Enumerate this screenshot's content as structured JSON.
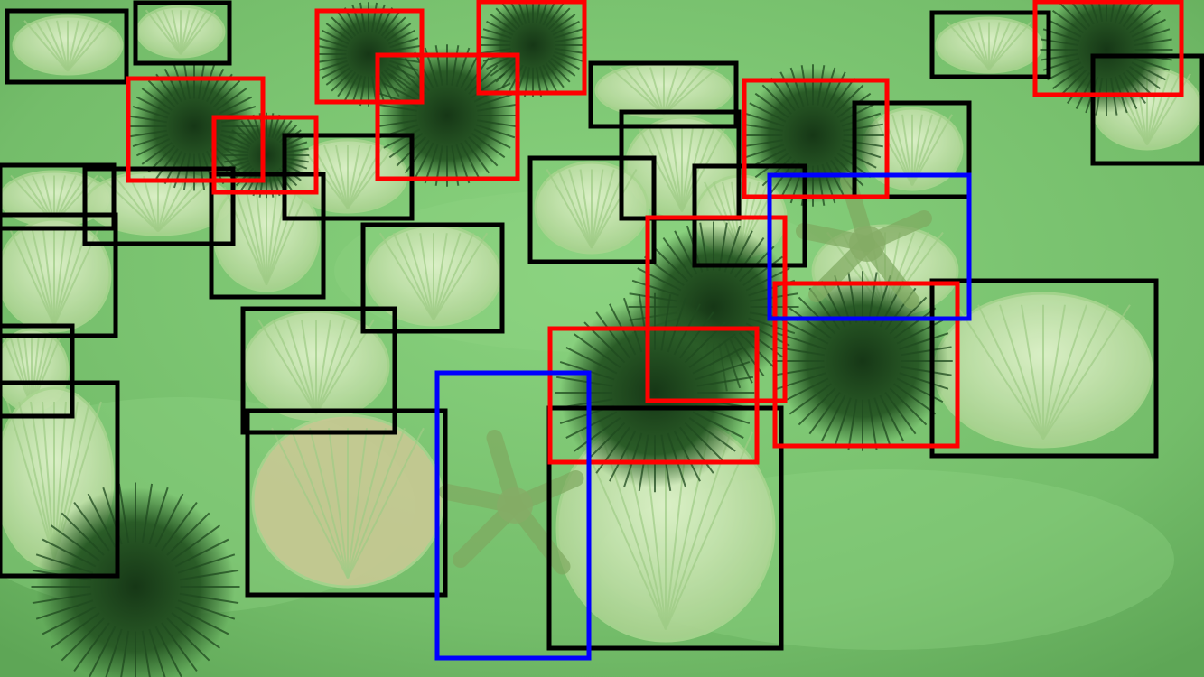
{
  "colors": {
    "water_light": "#86cf7c",
    "water_mid": "#6fb866",
    "water_dark": "#4f9a4a",
    "shell": "#cfe9b7",
    "shell_rim": "#a8d58f",
    "shell_tan": "#c9c48a",
    "urchin": "#1f4a1f",
    "box_scallop": "#000000",
    "box_urchin": "#ff0000",
    "box_starfish": "#0000ff"
  },
  "legend": {
    "box_scallop": "scallop",
    "box_urchin": "sea urchin",
    "box_starfish": "starfish"
  }
}
